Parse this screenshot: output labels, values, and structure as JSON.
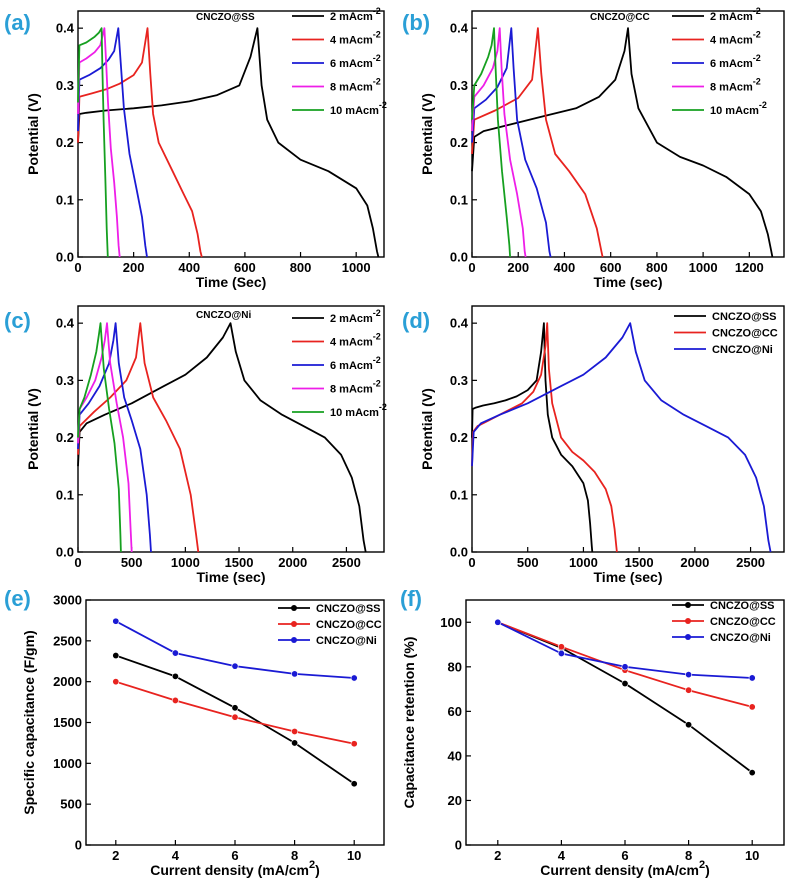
{
  "chart_data": [
    {
      "id": "a",
      "panel_label": "(a)",
      "type": "line",
      "title": "CNCZO@SS",
      "xlabel": "Time (Sec)",
      "ylabel": "Potential (V)",
      "xlim": [
        0,
        1100
      ],
      "ylim": [
        0,
        0.43
      ],
      "xticks": [
        "0",
        "200",
        "400",
        "600",
        "800",
        "1000"
      ],
      "xtick_values": [
        0,
        200,
        400,
        600,
        800,
        1000
      ],
      "yticks": [
        "0.0",
        "0.1",
        "0.2",
        "0.3",
        "0.4"
      ],
      "ytick_values": [
        0,
        0.1,
        0.2,
        0.3,
        0.4
      ],
      "legend": "right",
      "series": [
        {
          "name": "2 mAcm",
          "sup": "-2",
          "color": "#000000",
          "x": [
            0,
            5,
            30,
            100,
            200,
            300,
            400,
            500,
            580,
            620,
            645,
            660,
            680,
            720,
            800,
            900,
            1000,
            1040,
            1060,
            1075,
            1080
          ],
          "y": [
            0.2,
            0.25,
            0.252,
            0.256,
            0.26,
            0.265,
            0.272,
            0.283,
            0.3,
            0.35,
            0.4,
            0.3,
            0.24,
            0.2,
            0.17,
            0.15,
            0.12,
            0.09,
            0.05,
            0.01,
            0
          ]
        },
        {
          "name": "4 mAcm",
          "sup": "-2",
          "color": "#e8231f",
          "x": [
            0,
            5,
            50,
            100,
            150,
            200,
            230,
            250,
            260,
            270,
            290,
            340,
            380,
            410,
            430,
            440,
            445
          ],
          "y": [
            0.2,
            0.28,
            0.286,
            0.293,
            0.303,
            0.318,
            0.34,
            0.4,
            0.32,
            0.25,
            0.2,
            0.15,
            0.11,
            0.08,
            0.04,
            0.01,
            0
          ]
        },
        {
          "name": "6 mAcm",
          "sup": "-2",
          "color": "#1a1ad4",
          "x": [
            0,
            5,
            40,
            80,
            110,
            130,
            145,
            155,
            165,
            185,
            210,
            230,
            242,
            248
          ],
          "y": [
            0.22,
            0.31,
            0.318,
            0.33,
            0.345,
            0.36,
            0.4,
            0.33,
            0.26,
            0.18,
            0.12,
            0.07,
            0.02,
            0
          ]
        },
        {
          "name": "8 mAcm",
          "sup": "-2",
          "color": "#ee1ee8",
          "x": [
            0,
            5,
            30,
            60,
            80,
            95,
            102,
            108,
            118,
            130,
            140,
            146,
            150
          ],
          "y": [
            0.25,
            0.34,
            0.347,
            0.358,
            0.37,
            0.4,
            0.33,
            0.27,
            0.19,
            0.13,
            0.07,
            0.02,
            0
          ]
        },
        {
          "name": "10 mAcm",
          "sup": "-2",
          "color": "#16a020",
          "x": [
            0,
            5,
            30,
            60,
            75,
            85,
            88,
            92,
            98,
            103,
            107
          ],
          "y": [
            0.27,
            0.37,
            0.375,
            0.385,
            0.392,
            0.4,
            0.32,
            0.24,
            0.14,
            0.05,
            0
          ]
        }
      ]
    },
    {
      "id": "b",
      "panel_label": "(b)",
      "type": "line",
      "title": "CNCZO@CC",
      "xlabel": "Time (sec)",
      "ylabel": "Potential (V)",
      "xlim": [
        0,
        1350
      ],
      "ylim": [
        0,
        0.43
      ],
      "xticks": [
        "0",
        "200",
        "400",
        "600",
        "800",
        "1000",
        "1200"
      ],
      "xtick_values": [
        0,
        200,
        400,
        600,
        800,
        1000,
        1200
      ],
      "yticks": [
        "0.0",
        "0.1",
        "0.2",
        "0.3",
        "0.4"
      ],
      "ytick_values": [
        0,
        0.1,
        0.2,
        0.3,
        0.4
      ],
      "legend": "right",
      "series": [
        {
          "name": "2 mAcm",
          "sup": "-2",
          "color": "#000000",
          "x": [
            0,
            10,
            50,
            150,
            300,
            450,
            550,
            620,
            660,
            675,
            690,
            720,
            800,
            900,
            1000,
            1100,
            1200,
            1250,
            1280,
            1295,
            1300
          ],
          "y": [
            0.15,
            0.21,
            0.22,
            0.23,
            0.245,
            0.26,
            0.28,
            0.31,
            0.36,
            0.4,
            0.32,
            0.26,
            0.2,
            0.175,
            0.16,
            0.14,
            0.11,
            0.08,
            0.04,
            0.01,
            0
          ]
        },
        {
          "name": "4 mAcm",
          "sup": "-2",
          "color": "#e8231f",
          "x": [
            0,
            10,
            100,
            200,
            260,
            285,
            300,
            320,
            360,
            420,
            490,
            540,
            560,
            565
          ],
          "y": [
            0.18,
            0.24,
            0.256,
            0.278,
            0.31,
            0.4,
            0.32,
            0.24,
            0.18,
            0.15,
            0.11,
            0.05,
            0.01,
            0
          ]
        },
        {
          "name": "6 mAcm",
          "sup": "-2",
          "color": "#1a1ad4",
          "x": [
            0,
            10,
            60,
            110,
            150,
            170,
            180,
            195,
            230,
            280,
            320,
            335,
            340
          ],
          "y": [
            0.2,
            0.26,
            0.275,
            0.297,
            0.33,
            0.4,
            0.33,
            0.24,
            0.17,
            0.12,
            0.06,
            0.01,
            0
          ]
        },
        {
          "name": "8 mAcm",
          "sup": "-2",
          "color": "#ee1ee8",
          "x": [
            0,
            10,
            50,
            90,
            110,
            120,
            128,
            140,
            165,
            195,
            220,
            228,
            232
          ],
          "y": [
            0.22,
            0.28,
            0.3,
            0.33,
            0.36,
            0.4,
            0.33,
            0.25,
            0.17,
            0.11,
            0.05,
            0.01,
            0
          ]
        },
        {
          "name": "10 mAcm",
          "sup": "-2",
          "color": "#16a020",
          "x": [
            0,
            10,
            40,
            70,
            85,
            95,
            102,
            112,
            130,
            150,
            162,
            165
          ],
          "y": [
            0.24,
            0.3,
            0.32,
            0.35,
            0.37,
            0.4,
            0.33,
            0.24,
            0.15,
            0.07,
            0.02,
            0
          ]
        }
      ]
    },
    {
      "id": "c",
      "panel_label": "(c)",
      "type": "line",
      "title": "CNCZO@Ni",
      "xlabel": "Time (sec)",
      "ylabel": "Potential (V)",
      "xlim": [
        0,
        2850
      ],
      "ylim": [
        0,
        0.43
      ],
      "xticks": [
        "0",
        "500",
        "1000",
        "1500",
        "2000",
        "2500"
      ],
      "xtick_values": [
        0,
        500,
        1000,
        1500,
        2000,
        2500
      ],
      "yticks": [
        "0.0",
        "0.1",
        "0.2",
        "0.3",
        "0.4"
      ],
      "ytick_values": [
        0,
        0.1,
        0.2,
        0.3,
        0.4
      ],
      "legend": "right",
      "series": [
        {
          "name": "2 mAcm",
          "sup": "-2",
          "color": "#000000",
          "x": [
            0,
            15,
            80,
            250,
            500,
            800,
            1000,
            1200,
            1350,
            1420,
            1470,
            1550,
            1700,
            1900,
            2100,
            2300,
            2450,
            2550,
            2620,
            2660,
            2680
          ],
          "y": [
            0.15,
            0.21,
            0.225,
            0.24,
            0.26,
            0.29,
            0.31,
            0.34,
            0.375,
            0.4,
            0.35,
            0.3,
            0.265,
            0.24,
            0.22,
            0.2,
            0.17,
            0.13,
            0.08,
            0.02,
            0
          ]
        },
        {
          "name": "4 mAcm",
          "sup": "-2",
          "color": "#e8231f",
          "x": [
            0,
            15,
            150,
            300,
            450,
            540,
            580,
            620,
            700,
            820,
            950,
            1050,
            1100,
            1120
          ],
          "y": [
            0.17,
            0.22,
            0.245,
            0.27,
            0.3,
            0.34,
            0.4,
            0.33,
            0.27,
            0.23,
            0.18,
            0.1,
            0.03,
            0
          ]
        },
        {
          "name": "6 mAcm",
          "sup": "-2",
          "color": "#1a1ad4",
          "x": [
            0,
            15,
            100,
            200,
            290,
            330,
            350,
            380,
            430,
            500,
            580,
            640,
            670,
            680
          ],
          "y": [
            0.18,
            0.24,
            0.26,
            0.29,
            0.33,
            0.37,
            0.4,
            0.33,
            0.27,
            0.23,
            0.18,
            0.1,
            0.03,
            0
          ]
        },
        {
          "name": "8 mAcm",
          "sup": "-2",
          "color": "#ee1ee8",
          "x": [
            0,
            15,
            80,
            160,
            220,
            250,
            270,
            300,
            360,
            420,
            470,
            490,
            500
          ],
          "y": [
            0.19,
            0.25,
            0.27,
            0.3,
            0.34,
            0.37,
            0.4,
            0.33,
            0.26,
            0.2,
            0.12,
            0.04,
            0
          ]
        },
        {
          "name": "10 mAcm",
          "sup": "-2",
          "color": "#16a020",
          "x": [
            0,
            15,
            60,
            120,
            170,
            195,
            210,
            240,
            290,
            340,
            380,
            395,
            400
          ],
          "y": [
            0.2,
            0.25,
            0.27,
            0.31,
            0.35,
            0.38,
            0.4,
            0.32,
            0.25,
            0.19,
            0.11,
            0.03,
            0
          ]
        }
      ]
    },
    {
      "id": "d",
      "panel_label": "(d)",
      "type": "line",
      "title": "",
      "xlabel": "Time (sec)",
      "ylabel": "Potential (V)",
      "xlim": [
        0,
        2800
      ],
      "ylim": [
        0,
        0.43
      ],
      "xticks": [
        "0",
        "500",
        "1000",
        "1500",
        "2000",
        "2500"
      ],
      "xtick_values": [
        0,
        500,
        1000,
        1500,
        2000,
        2500
      ],
      "yticks": [
        "0.0",
        "0.1",
        "0.2",
        "0.3",
        "0.4"
      ],
      "ytick_values": [
        0,
        0.1,
        0.2,
        0.3,
        0.4
      ],
      "legend": "top-right",
      "series": [
        {
          "name": "CNCZO@SS",
          "color": "#000000",
          "x": [
            0,
            5,
            30,
            100,
            200,
            300,
            400,
            500,
            580,
            620,
            645,
            660,
            680,
            720,
            800,
            900,
            1000,
            1040,
            1060,
            1075,
            1080
          ],
          "y": [
            0.2,
            0.25,
            0.252,
            0.256,
            0.26,
            0.265,
            0.272,
            0.283,
            0.3,
            0.35,
            0.4,
            0.3,
            0.24,
            0.2,
            0.17,
            0.15,
            0.12,
            0.09,
            0.05,
            0.01,
            0
          ]
        },
        {
          "name": "CNCZO@CC",
          "color": "#e8231f",
          "x": [
            0,
            10,
            50,
            150,
            300,
            450,
            550,
            620,
            660,
            675,
            690,
            720,
            800,
            900,
            1000,
            1100,
            1200,
            1250,
            1280,
            1295,
            1300
          ],
          "y": [
            0.15,
            0.21,
            0.22,
            0.23,
            0.245,
            0.26,
            0.28,
            0.31,
            0.36,
            0.4,
            0.32,
            0.26,
            0.2,
            0.175,
            0.16,
            0.14,
            0.11,
            0.08,
            0.04,
            0.01,
            0
          ]
        },
        {
          "name": "CNCZO@Ni",
          "color": "#1a1ad4",
          "x": [
            0,
            15,
            80,
            250,
            500,
            800,
            1000,
            1200,
            1350,
            1420,
            1470,
            1550,
            1700,
            1900,
            2100,
            2300,
            2450,
            2550,
            2620,
            2660,
            2680
          ],
          "y": [
            0.15,
            0.21,
            0.225,
            0.24,
            0.26,
            0.29,
            0.31,
            0.34,
            0.375,
            0.4,
            0.35,
            0.3,
            0.265,
            0.24,
            0.22,
            0.2,
            0.17,
            0.13,
            0.08,
            0.02,
            0
          ]
        }
      ]
    },
    {
      "id": "e",
      "panel_label": "(e)",
      "type": "line",
      "markers": true,
      "title": "",
      "xlabel": "Current density (mA/cm",
      "xlabel_sup": "2",
      "xlabel_end": ")",
      "ylabel": "Specific capacitance (F/gm)",
      "xlim": [
        1,
        11
      ],
      "ylim": [
        0,
        3000
      ],
      "xticks": [
        "2",
        "4",
        "6",
        "8",
        "10"
      ],
      "xtick_values": [
        2,
        4,
        6,
        8,
        10
      ],
      "yticks": [
        "0",
        "500",
        "1000",
        "1500",
        "2000",
        "2500",
        "3000"
      ],
      "ytick_values": [
        0,
        500,
        1000,
        1500,
        2000,
        2500,
        3000
      ],
      "legend": "top-right",
      "series": [
        {
          "name": "CNCZO@SS",
          "color": "#000000",
          "x": [
            2,
            4,
            6,
            8,
            10
          ],
          "y": [
            2320,
            2065,
            1680,
            1250,
            750
          ]
        },
        {
          "name": "CNCZO@CC",
          "color": "#e8231f",
          "x": [
            2,
            4,
            6,
            8,
            10
          ],
          "y": [
            2000,
            1770,
            1565,
            1390,
            1240
          ]
        },
        {
          "name": "CNCZO@Ni",
          "color": "#1a1ad4",
          "x": [
            2,
            4,
            6,
            8,
            10
          ],
          "y": [
            2740,
            2350,
            2190,
            2095,
            2045
          ]
        }
      ]
    },
    {
      "id": "f",
      "panel_label": "(f)",
      "type": "line",
      "markers": true,
      "title": "",
      "xlabel": "Current density (mA/cm",
      "xlabel_sup": "2",
      "xlabel_end": ")",
      "ylabel": "Capacitance retention (%)",
      "xlim": [
        1,
        11
      ],
      "ylim": [
        0,
        110
      ],
      "xticks": [
        "2",
        "4",
        "6",
        "8",
        "10"
      ],
      "xtick_values": [
        2,
        4,
        6,
        8,
        10
      ],
      "yticks": [
        "0",
        "20",
        "40",
        "60",
        "80",
        "100"
      ],
      "ytick_values": [
        0,
        20,
        40,
        60,
        80,
        100
      ],
      "legend": "top-right",
      "series": [
        {
          "name": "CNCZO@SS",
          "color": "#000000",
          "x": [
            2,
            4,
            6,
            8,
            10
          ],
          "y": [
            100,
            88.5,
            72.5,
            54,
            32.5
          ]
        },
        {
          "name": "CNCZO@CC",
          "color": "#e8231f",
          "x": [
            2,
            4,
            6,
            8,
            10
          ],
          "y": [
            100,
            89,
            78.5,
            69.5,
            62
          ]
        },
        {
          "name": "CNCZO@Ni",
          "color": "#1a1ad4",
          "x": [
            2,
            4,
            6,
            8,
            10
          ],
          "y": [
            100,
            86,
            80,
            76.5,
            75
          ]
        }
      ]
    }
  ]
}
